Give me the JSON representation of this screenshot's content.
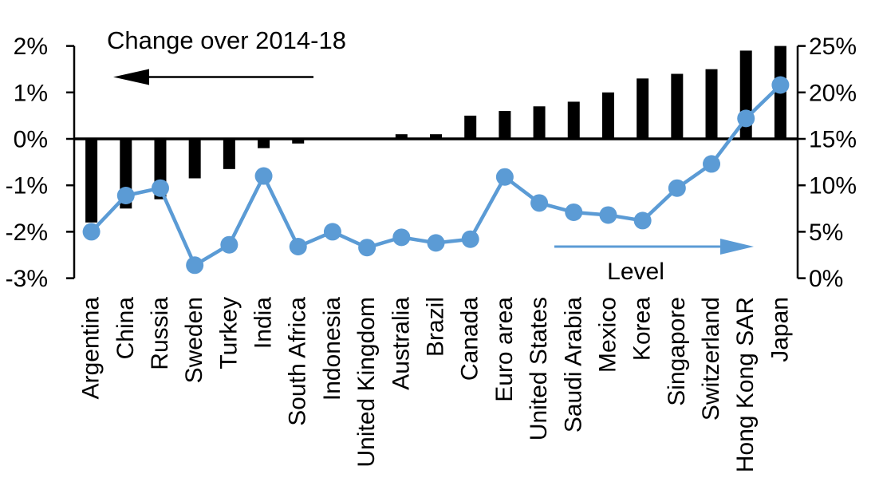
{
  "colors": {
    "bar": "#000000",
    "line": "#5B9BD5",
    "text": "#000000",
    "background": "#FFFFFF"
  },
  "chart_data": {
    "type": "bar+line combo, dual axis",
    "categories": [
      "Argentina",
      "China",
      "Russia",
      "Sweden",
      "Turkey",
      "India",
      "South Africa",
      "Indonesia",
      "United Kingdom",
      "Australia",
      "Brazil",
      "Canada",
      "Euro area",
      "United States",
      "Saudi Arabia",
      "Mexico",
      "Korea",
      "Singapore",
      "Switzerland",
      "Hong Kong SAR",
      "Japan"
    ],
    "series": [
      {
        "name": "Change over 2014-18",
        "type": "bar",
        "axis": "left",
        "color": "#000000",
        "values": [
          -1.8,
          -1.5,
          -1.3,
          -0.85,
          -0.65,
          -0.2,
          -0.1,
          0,
          0,
          0.1,
          0.1,
          0.5,
          0.6,
          0.7,
          0.8,
          1.0,
          1.3,
          1.4,
          1.5,
          1.9,
          2.0
        ]
      },
      {
        "name": "Level",
        "type": "line",
        "axis": "right",
        "color": "#5B9BD5",
        "values": [
          5.0,
          8.9,
          9.7,
          1.4,
          3.6,
          11.0,
          3.4,
          5.0,
          3.3,
          4.4,
          3.8,
          4.2,
          10.9,
          8.1,
          7.1,
          6.8,
          6.2,
          9.7,
          12.3,
          17.2,
          20.8
        ]
      }
    ],
    "left_axis": {
      "min": -3,
      "max": 2,
      "tick_step": 1,
      "tick_labels": [
        "2%",
        "1%",
        "0%",
        "-1%",
        "-2%",
        "-3%"
      ],
      "side": "left"
    },
    "right_axis": {
      "min": 0,
      "max": 25,
      "tick_step": 5,
      "tick_labels": [
        "25%",
        "20%",
        "15%",
        "10%",
        "5%",
        "0%"
      ],
      "side": "right"
    },
    "annotations": {
      "bar_arrow_label": "Change over 2014-18",
      "bar_arrow_direction": "left",
      "line_arrow_label": "Level",
      "line_arrow_direction": "right"
    },
    "grid": false,
    "legend_position": "annotated arrows (no legend box)"
  }
}
